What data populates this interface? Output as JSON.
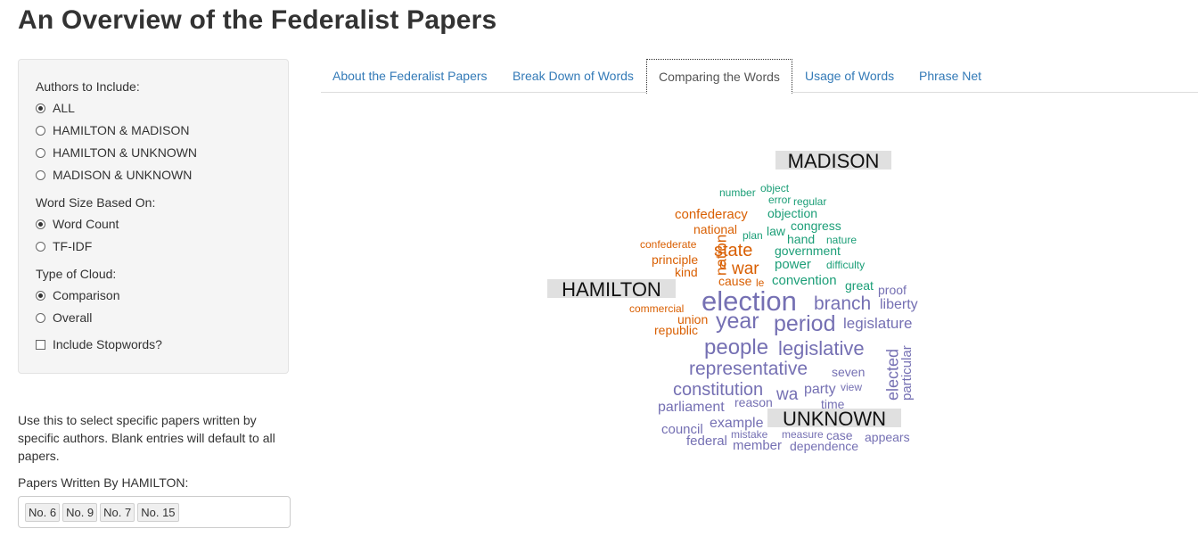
{
  "page_title": "An Overview of the Federalist Papers",
  "sidebar": {
    "authors_label": "Authors to Include:",
    "authors": [
      {
        "label": "ALL",
        "selected": true
      },
      {
        "label": "HAMILTON & MADISON",
        "selected": false
      },
      {
        "label": "HAMILTON & UNKNOWN",
        "selected": false
      },
      {
        "label": "MADISON & UNKNOWN",
        "selected": false
      }
    ],
    "size_label": "Word Size Based On:",
    "sizes": [
      {
        "label": "Word Count",
        "selected": true
      },
      {
        "label": "TF-IDF",
        "selected": false
      }
    ],
    "cloud_label": "Type of Cloud:",
    "clouds": [
      {
        "label": "Comparison",
        "selected": true
      },
      {
        "label": "Overall",
        "selected": false
      }
    ],
    "stopwords_label": "Include Stopwords?",
    "stopwords_checked": false
  },
  "help_text": "Use this to select specific papers written by specific authors. Blank entries will default to all papers.",
  "papers_label": "Papers Written By HAMILTON:",
  "papers": [
    "No. 6",
    "No. 9",
    "No. 7",
    "No. 15"
  ],
  "tabs": [
    {
      "label": "About the Federalist Papers",
      "active": false
    },
    {
      "label": "Break Down of Words",
      "active": false
    },
    {
      "label": "Comparing the Words",
      "active": true
    },
    {
      "label": "Usage of Words",
      "active": false
    },
    {
      "label": "Phrase Net",
      "active": false
    }
  ],
  "cloud": {
    "colors": {
      "hamilton": "#d95f02",
      "madison": "#1b9e77",
      "unknown": "#7570b3"
    },
    "group_labels": {
      "madison": "MADISON",
      "hamilton": "HAMILTON",
      "unknown": "UNKNOWN"
    },
    "words": [
      {
        "text": "number",
        "group": "madison"
      },
      {
        "text": "object",
        "group": "madison"
      },
      {
        "text": "error",
        "group": "madison"
      },
      {
        "text": "regular",
        "group": "madison"
      },
      {
        "text": "objection",
        "group": "madison"
      },
      {
        "text": "congress",
        "group": "madison"
      },
      {
        "text": "plan",
        "group": "madison"
      },
      {
        "text": "law",
        "group": "madison"
      },
      {
        "text": "hand",
        "group": "madison"
      },
      {
        "text": "nature",
        "group": "madison"
      },
      {
        "text": "government",
        "group": "madison"
      },
      {
        "text": "power",
        "group": "madison"
      },
      {
        "text": "difficulty",
        "group": "madison"
      },
      {
        "text": "convention",
        "group": "madison"
      },
      {
        "text": "great",
        "group": "madison"
      },
      {
        "text": "confederacy",
        "group": "hamilton"
      },
      {
        "text": "national",
        "group": "hamilton"
      },
      {
        "text": "confederate",
        "group": "hamilton"
      },
      {
        "text": "state",
        "group": "hamilton"
      },
      {
        "text": "nation",
        "group": "hamilton"
      },
      {
        "text": "principle",
        "group": "hamilton"
      },
      {
        "text": "u",
        "group": "hamilton"
      },
      {
        "text": "war",
        "group": "hamilton"
      },
      {
        "text": "kind",
        "group": "hamilton"
      },
      {
        "text": "cause",
        "group": "hamilton"
      },
      {
        "text": "le",
        "group": "hamilton"
      },
      {
        "text": "commercial",
        "group": "hamilton"
      },
      {
        "text": "union",
        "group": "hamilton"
      },
      {
        "text": "republic",
        "group": "hamilton"
      },
      {
        "text": "election",
        "group": "unknown"
      },
      {
        "text": "branch",
        "group": "unknown"
      },
      {
        "text": "proof",
        "group": "unknown"
      },
      {
        "text": "liberty",
        "group": "unknown"
      },
      {
        "text": "year",
        "group": "unknown"
      },
      {
        "text": "period",
        "group": "unknown"
      },
      {
        "text": "legislature",
        "group": "unknown"
      },
      {
        "text": "people",
        "group": "unknown"
      },
      {
        "text": "legislative",
        "group": "unknown"
      },
      {
        "text": "representative",
        "group": "unknown"
      },
      {
        "text": "seven",
        "group": "unknown"
      },
      {
        "text": "elected",
        "group": "unknown"
      },
      {
        "text": "particular",
        "group": "unknown"
      },
      {
        "text": "constitution",
        "group": "unknown"
      },
      {
        "text": "wa",
        "group": "unknown"
      },
      {
        "text": "party",
        "group": "unknown"
      },
      {
        "text": "view",
        "group": "unknown"
      },
      {
        "text": "parliament",
        "group": "unknown"
      },
      {
        "text": "reason",
        "group": "unknown"
      },
      {
        "text": "time",
        "group": "unknown"
      },
      {
        "text": "example",
        "group": "unknown"
      },
      {
        "text": "council",
        "group": "unknown"
      },
      {
        "text": "mistake",
        "group": "unknown"
      },
      {
        "text": "measure",
        "group": "unknown"
      },
      {
        "text": "case",
        "group": "unknown"
      },
      {
        "text": "appears",
        "group": "unknown"
      },
      {
        "text": "federal",
        "group": "unknown"
      },
      {
        "text": "member",
        "group": "unknown"
      },
      {
        "text": "dependence",
        "group": "unknown"
      }
    ]
  }
}
